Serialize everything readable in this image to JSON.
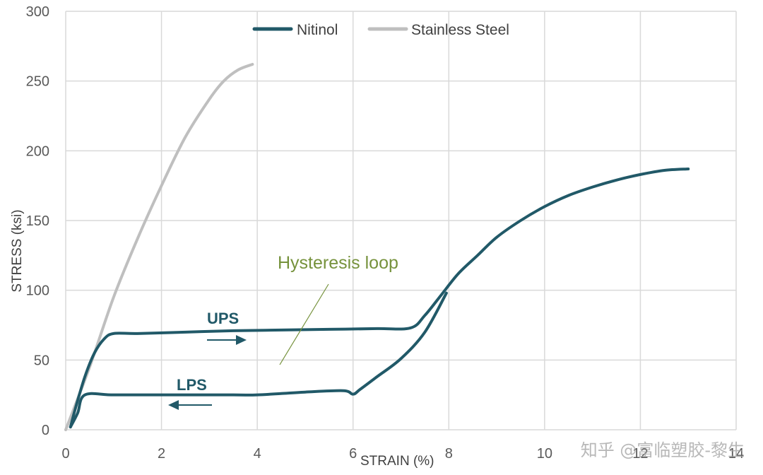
{
  "chart_data": {
    "type": "line",
    "xlabel": "STRAIN (%)",
    "ylabel": "STRESS (ksi)",
    "xlim": [
      0,
      14
    ],
    "ylim": [
      0,
      300
    ],
    "xticks": [
      "0",
      "2",
      "4",
      "6",
      "8",
      "10",
      "12",
      "14"
    ],
    "yticks": [
      "0",
      "50",
      "100",
      "150",
      "200",
      "250",
      "300"
    ],
    "grid": true,
    "legend_position": "top-center",
    "series": [
      {
        "name": "Nitinol",
        "color": "#215968",
        "x": [
          0.1,
          0.2,
          0.4,
          0.6,
          0.8,
          1.0,
          1.5,
          2.5,
          3.5,
          4.5,
          5.5,
          6.5,
          7.2,
          7.5,
          7.85,
          8.2,
          8.6,
          9.0,
          9.5,
          10.0,
          10.5,
          11.0,
          11.5,
          12.0,
          12.5,
          13.0
        ],
        "y": [
          2,
          15,
          38,
          55,
          65,
          69,
          69,
          70,
          71,
          71.5,
          72,
          72.5,
          73,
          82,
          97,
          112,
          125,
          138,
          150,
          160,
          168,
          174,
          179,
          183,
          186,
          187
        ],
        "unload_x": [
          7.95,
          7.5,
          7.0,
          6.5,
          6.15,
          6.0,
          5.8,
          5.0,
          4.0,
          3.5,
          2.0,
          1.0,
          0.4,
          0.25,
          0.1
        ],
        "unload_y": [
          98,
          70,
          51,
          38,
          29,
          25.5,
          28,
          27,
          25,
          25,
          25,
          25,
          25,
          12,
          2
        ]
      },
      {
        "name": "Stainless Steel",
        "color": "#BFBFBF",
        "x": [
          0,
          0.5,
          1.0,
          1.5,
          2.0,
          2.5,
          3.0,
          3.3,
          3.6,
          3.9
        ],
        "y": [
          0,
          45,
          95,
          137,
          175,
          210,
          237,
          250,
          258,
          262
        ]
      }
    ],
    "annotations": {
      "hysteresis": {
        "text": "Hysteresis loop",
        "color": "#76923C"
      },
      "ups": {
        "text": "UPS"
      },
      "lps": {
        "text": "LPS"
      }
    }
  },
  "watermark": "知乎 @富临塑胶-黎生"
}
